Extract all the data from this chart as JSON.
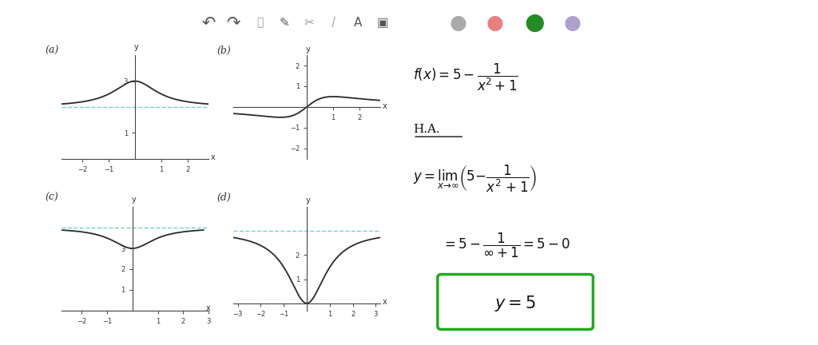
{
  "bg_color": "#ffffff",
  "toolbar_bg": "#e0e0e0",
  "graph_a_label": "(a)",
  "graph_b_label": "(b)",
  "graph_c_label": "(c)",
  "graph_d_label": "(d)",
  "curve_color": "#2a2a2a",
  "asymptote_color": "#5bc8d4",
  "axis_color": "#444444",
  "tick_color": "#444444",
  "tick_label_color": "#333333",
  "math_color": "#111111",
  "box_color": "#22aa22",
  "graph_a_func": "2_plus_inv",
  "graph_a_asym": 2.0,
  "graph_a_xlim": [
    -2.8,
    2.8
  ],
  "graph_a_ylim": [
    0.0,
    4.0
  ],
  "graph_a_xticks": [
    -2,
    -1,
    1,
    2
  ],
  "graph_a_yticks": [
    1,
    3
  ],
  "graph_b_xlim": [
    -2.8,
    2.8
  ],
  "graph_b_ylim": [
    -2.5,
    2.5
  ],
  "graph_b_xticks": [
    1,
    2
  ],
  "graph_b_yticks": [
    -2,
    -1,
    1,
    2
  ],
  "graph_c_asym": 4.0,
  "graph_c_xlim": [
    -2.8,
    2.8
  ],
  "graph_c_ylim": [
    0.0,
    5.0
  ],
  "graph_c_xticks": [
    -2,
    -1,
    1,
    2,
    3
  ],
  "graph_c_yticks": [
    1,
    2,
    3
  ],
  "graph_d_asym": 3.0,
  "graph_d_xlim": [
    -3.2,
    3.2
  ],
  "graph_d_ylim": [
    -0.3,
    4.0
  ],
  "graph_d_xticks": [
    -3,
    -2,
    -1,
    1,
    2,
    3
  ],
  "graph_d_yticks": [
    1,
    2
  ]
}
